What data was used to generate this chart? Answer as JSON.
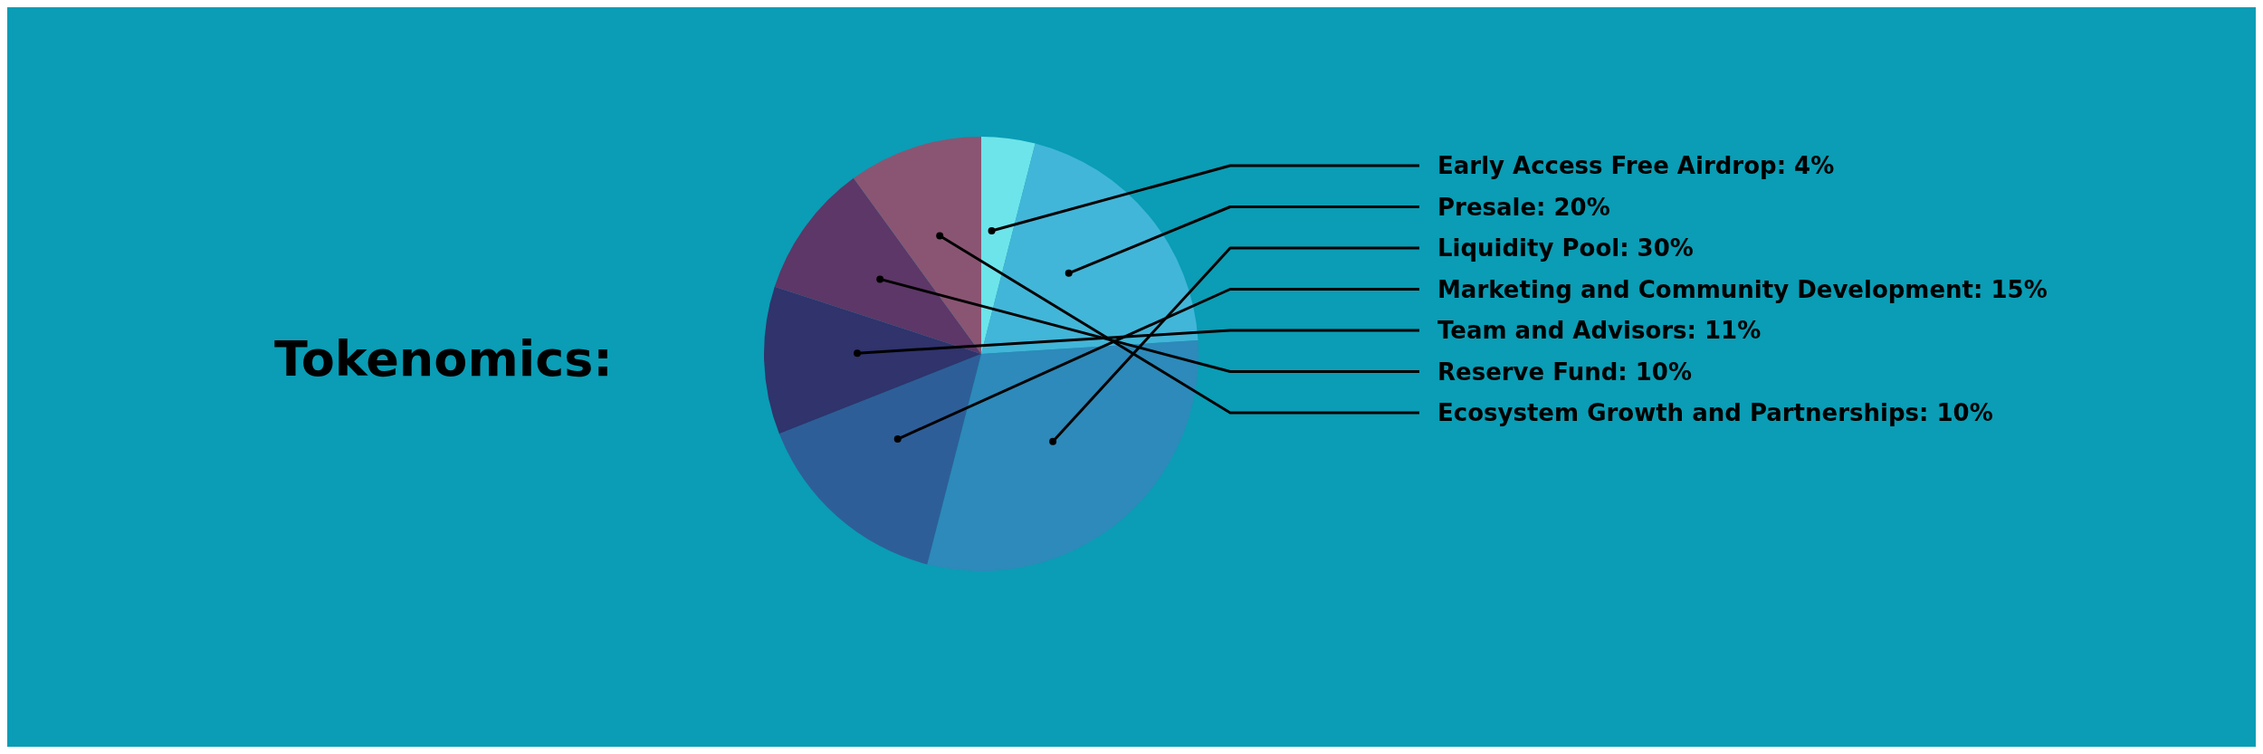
{
  "chart_data": {
    "type": "pie",
    "title": "Tokenomics:",
    "categories": [
      "Early Access Free Airdrop",
      "Presale",
      "Liquidity Pool",
      "Marketing and Community Development",
      "Team and Advisors",
      "Reserve Fund",
      "Ecosystem Growth and Partnerships"
    ],
    "values": [
      4,
      20,
      30,
      15,
      11,
      10,
      10
    ],
    "value_labels": [
      "4%",
      "20%",
      "30%",
      "15%",
      "11%",
      "10%",
      "10%"
    ],
    "colors": [
      "#6de4ea",
      "#42b6d8",
      "#2d8aba",
      "#2e5e98",
      "#30336c",
      "#5d3767",
      "#8a5573"
    ],
    "legend": false
  }
}
